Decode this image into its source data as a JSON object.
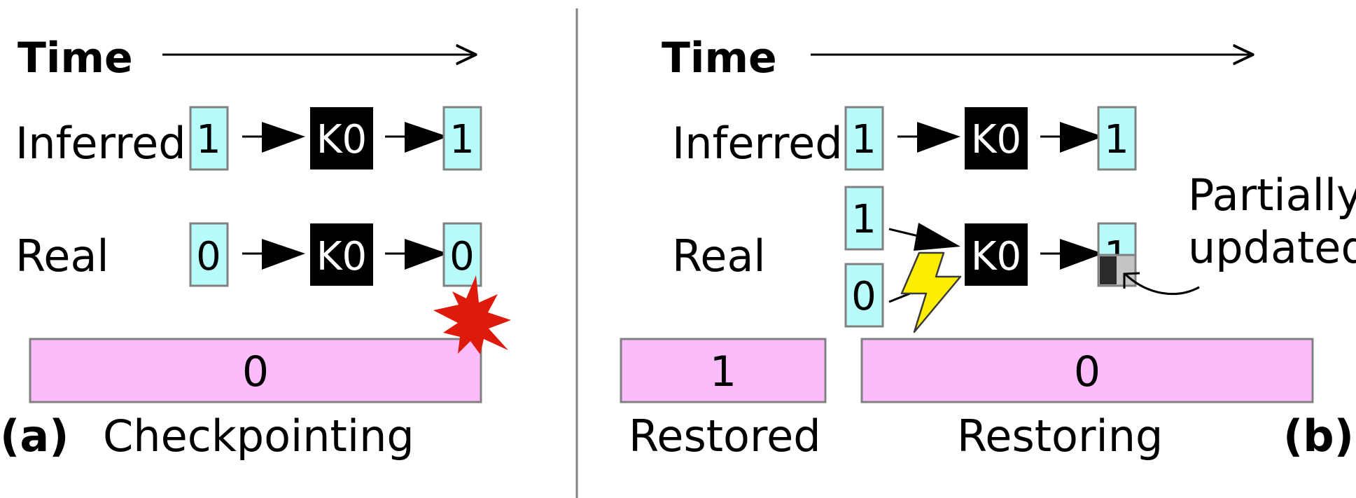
{
  "panel_a": {
    "time_label": "Time",
    "inferred_label": "Inferred",
    "real_label": "Real",
    "inferred_seq": [
      "1",
      "K0",
      "1"
    ],
    "real_seq": [
      "0",
      "K0",
      "0"
    ],
    "bar_value": "0",
    "panel_letter": "(a)",
    "caption": "Checkpointing"
  },
  "panel_b": {
    "time_label": "Time",
    "inferred_label": "Inferred",
    "real_label": "Real",
    "inferred_seq": [
      "1",
      "K0",
      "1"
    ],
    "real_inputs": [
      "1",
      "0"
    ],
    "real_key": "K0",
    "real_out": "1",
    "annotation": "Partially updated",
    "annotation_line1": "Partially",
    "annotation_line2": "updated",
    "restored_bar_value": "1",
    "restoring_bar_value": "0",
    "restored_caption": "Restored",
    "restoring_caption": "Restoring",
    "panel_letter": "(b)"
  },
  "colors": {
    "cell": "#b8fbfb",
    "cell_border": "#808080",
    "key": "#000000",
    "bar": "#fcbcfc",
    "burst": "#dd1a0b",
    "bolt": "#ffee00",
    "partial_dark": "#2b2b2b",
    "partial_light": "#c4c4c4"
  },
  "icons": {
    "failure_burst": "explosion-icon",
    "power_failure": "lightning-bolt-icon"
  }
}
